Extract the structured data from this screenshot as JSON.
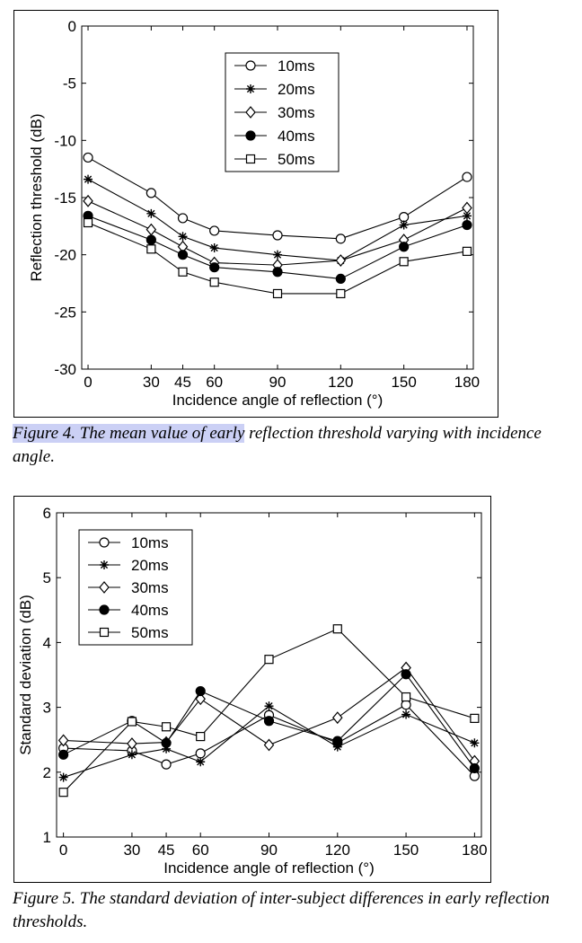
{
  "chart_data": [
    {
      "type": "line",
      "title": "",
      "xlabel": "Incidence angle of reflection (°)",
      "ylabel": "Reflection threshold (dB)",
      "x": [
        0,
        30,
        45,
        60,
        90,
        120,
        150,
        180
      ],
      "xticks": [
        0,
        30,
        45,
        60,
        90,
        120,
        150,
        180
      ],
      "xlim": [
        -3,
        183
      ],
      "yticks": [
        0,
        -5,
        -10,
        -15,
        -20,
        -25,
        -30
      ],
      "ylim": [
        -30,
        0
      ],
      "legend_position": "top-center",
      "series": [
        {
          "name": "10ms",
          "marker": "circle",
          "values": [
            -11.5,
            -14.6,
            -16.8,
            -17.9,
            -18.3,
            -18.6,
            -16.7,
            -13.2
          ]
        },
        {
          "name": "20ms",
          "marker": "star",
          "values": [
            -13.4,
            -16.4,
            -18.4,
            -19.4,
            -20.0,
            -20.5,
            -17.4,
            -16.6
          ]
        },
        {
          "name": "30ms",
          "marker": "diamond",
          "values": [
            -15.3,
            -17.8,
            -19.3,
            -20.7,
            -20.9,
            -20.5,
            -18.7,
            -15.9
          ]
        },
        {
          "name": "40ms",
          "marker": "filled-circle",
          "values": [
            -16.6,
            -18.7,
            -20.0,
            -21.1,
            -21.5,
            -22.1,
            -19.3,
            -17.4
          ]
        },
        {
          "name": "50ms",
          "marker": "square",
          "values": [
            -17.2,
            -19.5,
            -21.5,
            -22.4,
            -23.4,
            -23.4,
            -20.6,
            -19.7
          ]
        }
      ]
    },
    {
      "type": "line",
      "title": "",
      "xlabel": "Incidence angle of reflection (°)",
      "ylabel": "Standard deviation (dB)",
      "x": [
        0,
        30,
        45,
        60,
        90,
        120,
        150,
        180
      ],
      "xticks": [
        0,
        30,
        45,
        60,
        90,
        120,
        150,
        180
      ],
      "xlim": [
        -3,
        183
      ],
      "yticks": [
        1,
        2,
        3,
        4,
        5,
        6
      ],
      "ylim": [
        1,
        6
      ],
      "legend_position": "top-left",
      "series": [
        {
          "name": "10ms",
          "marker": "circle",
          "values": [
            2.37,
            2.33,
            2.12,
            2.29,
            2.88,
            2.45,
            3.04,
            1.94
          ]
        },
        {
          "name": "20ms",
          "marker": "star",
          "values": [
            1.92,
            2.27,
            2.36,
            2.16,
            3.02,
            2.39,
            2.89,
            2.45
          ]
        },
        {
          "name": "30ms",
          "marker": "diamond",
          "values": [
            2.49,
            2.44,
            2.46,
            3.13,
            2.42,
            2.84,
            3.61,
            2.17
          ]
        },
        {
          "name": "40ms",
          "marker": "filled-circle",
          "values": [
            2.27,
            2.79,
            2.45,
            3.25,
            2.79,
            2.48,
            3.51,
            2.06
          ]
        },
        {
          "name": "50ms",
          "marker": "square",
          "values": [
            1.69,
            2.78,
            2.7,
            2.55,
            3.74,
            4.21,
            3.16,
            2.83
          ]
        }
      ]
    }
  ],
  "captions": {
    "fig4_highlight": "Figure 4. The mean value of early",
    "fig4_rest": " reflection threshold varying with incidence angle.",
    "fig5": "Figure 5. The standard deviation of inter-subject differences in early reflection thresholds."
  }
}
